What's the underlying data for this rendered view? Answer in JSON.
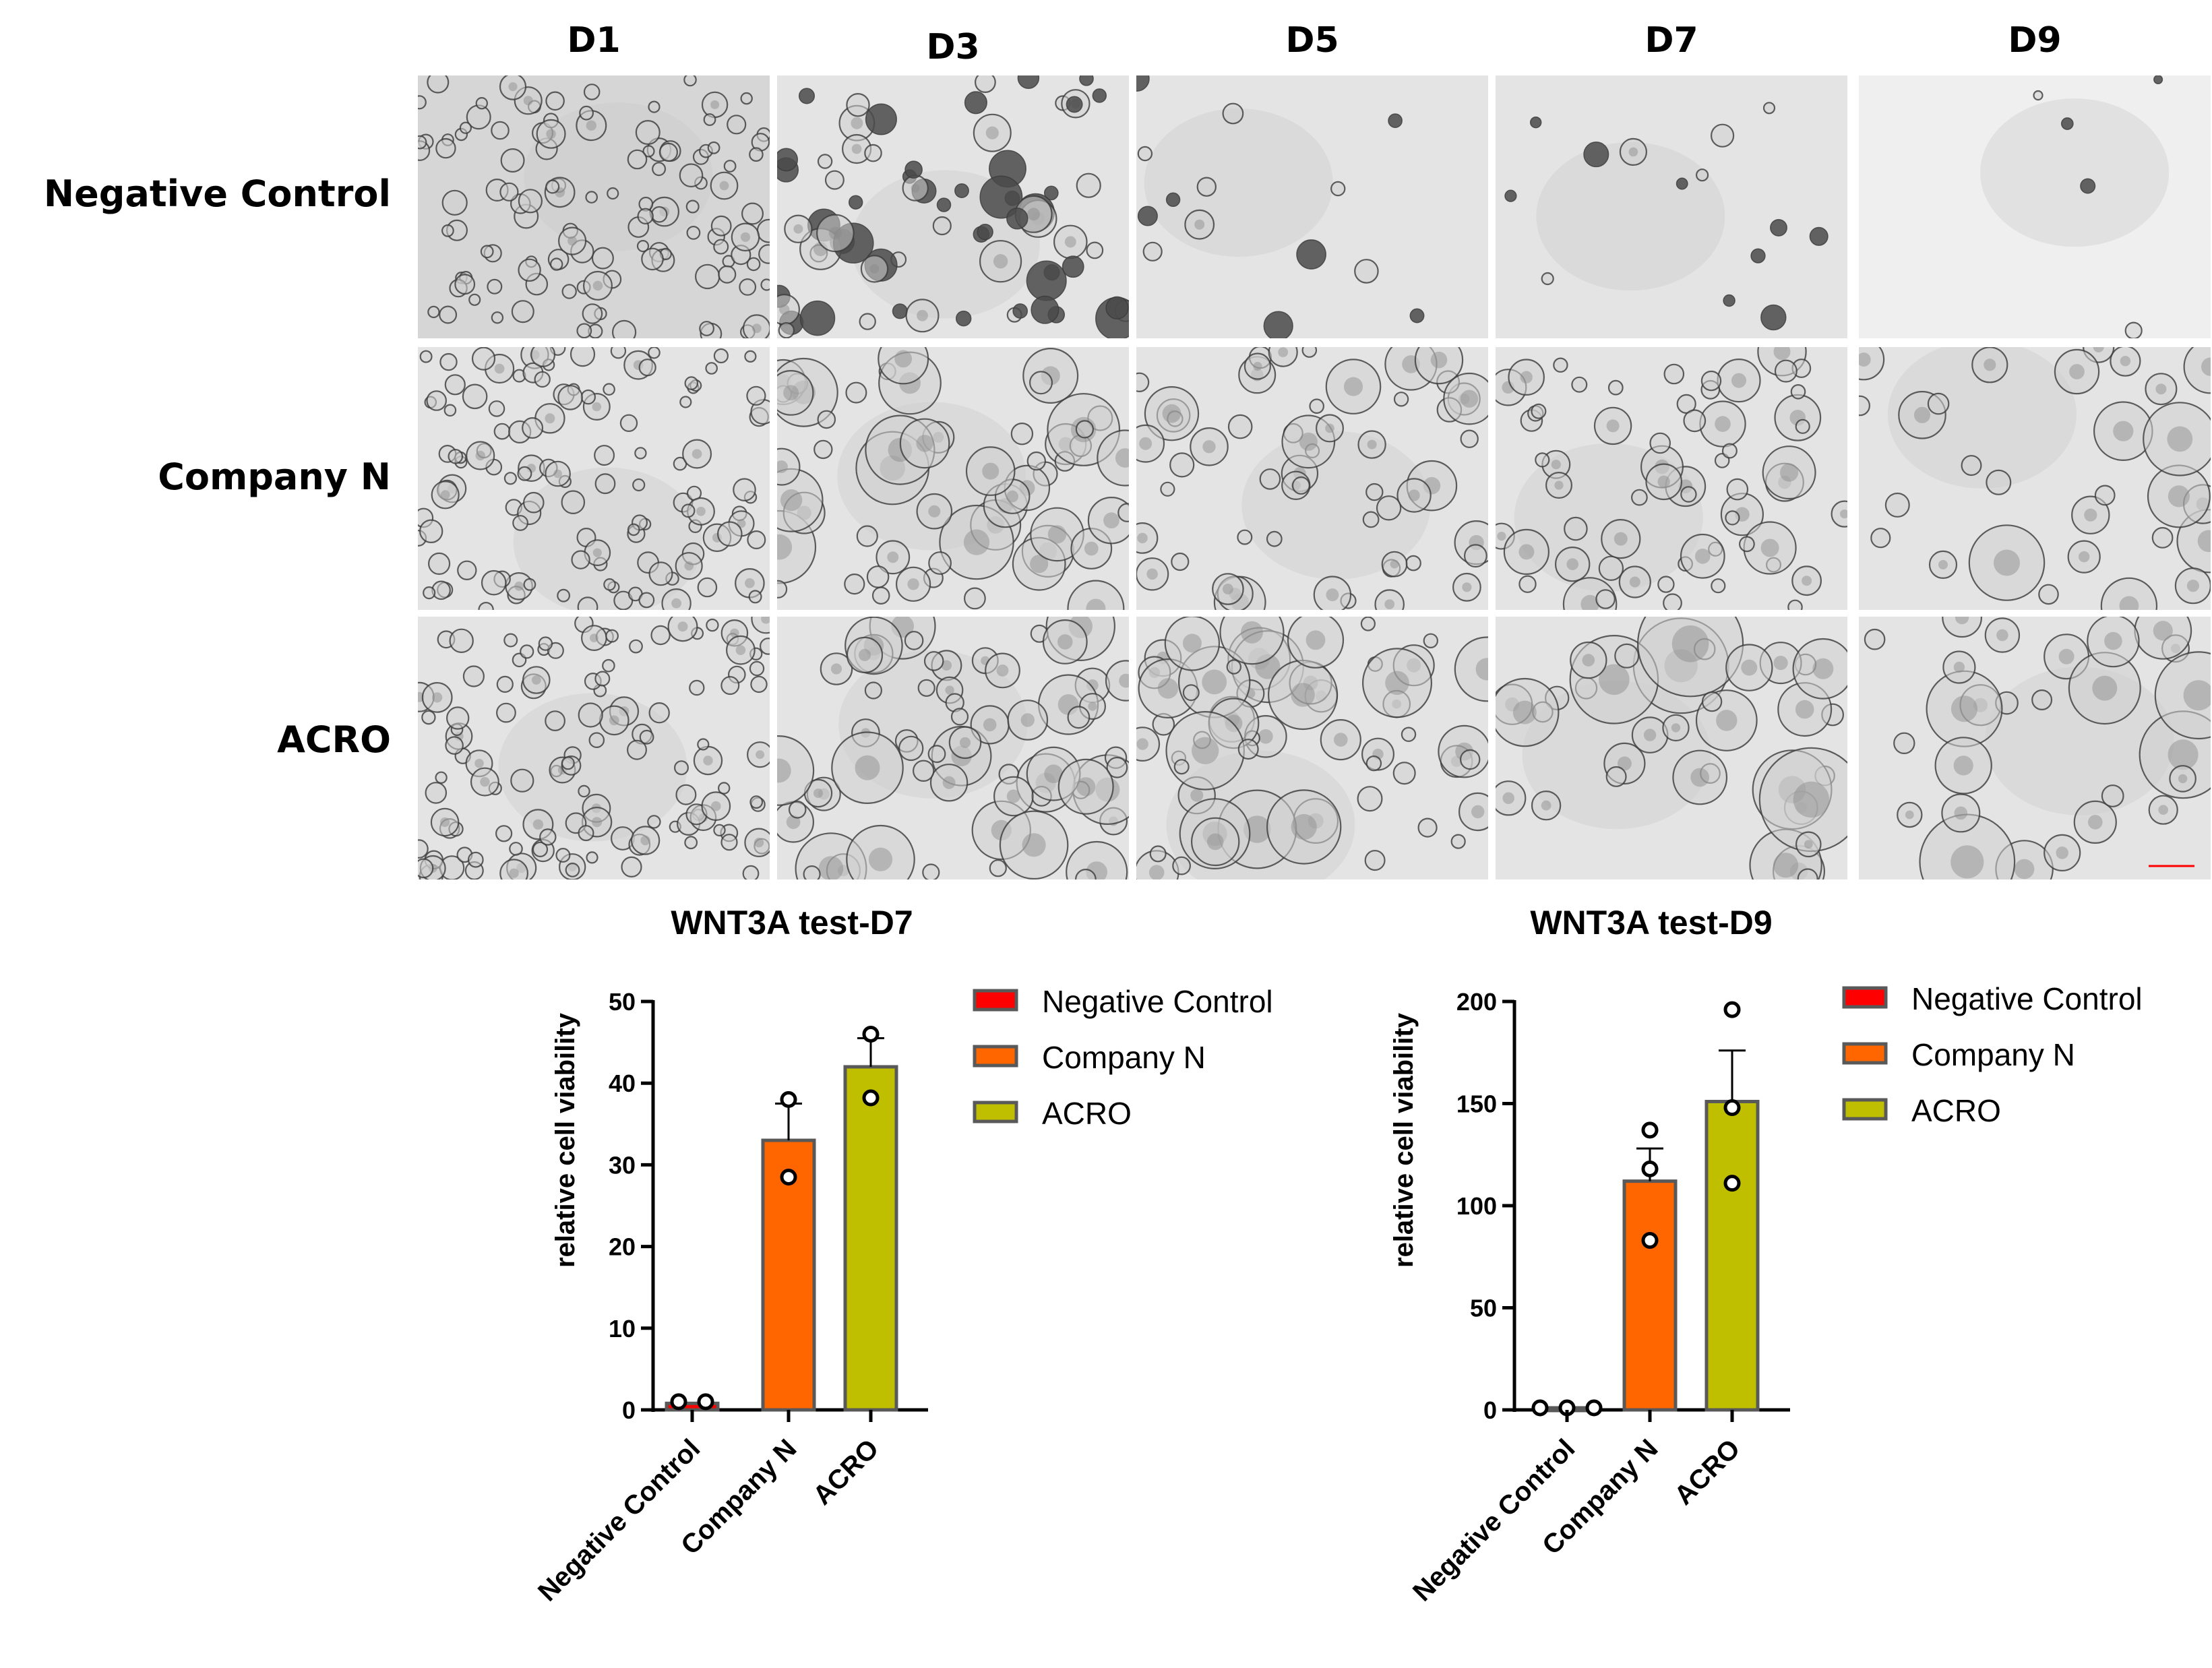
{
  "figure": {
    "columns": [
      "D1",
      "D3",
      "D5",
      "D7",
      "D9"
    ],
    "rows": [
      "Negative Control",
      "Company N",
      "ACRO"
    ]
  },
  "colors": {
    "Negative Control": "#ff0000",
    "Company N": "#ff6600",
    "ACRO": "#bfbf00",
    "bar_stroke": "#595959"
  },
  "chart_data": [
    {
      "type": "bar",
      "title": "WNT3A test-D7",
      "xlabel": "",
      "ylabel": "relative cell viability",
      "ylim": [
        0,
        50
      ],
      "yticks": [
        0,
        10,
        20,
        30,
        40,
        50
      ],
      "categories": [
        "Negative Control",
        "Company N",
        "ACRO"
      ],
      "values": [
        0.8,
        33,
        42
      ],
      "errors": [
        0.2,
        4.5,
        3.5
      ],
      "points": [
        [
          1,
          1
        ],
        [
          38,
          28.5
        ],
        [
          46,
          38.2
        ]
      ],
      "legend": {
        "position": "right",
        "entries": [
          "Negative Control",
          "Company N",
          "ACRO"
        ]
      },
      "grid": false
    },
    {
      "type": "bar",
      "title": "WNT3A test-D9",
      "xlabel": "",
      "ylabel": "relative cell viability",
      "ylim": [
        0,
        200
      ],
      "yticks": [
        0,
        50,
        100,
        150,
        200
      ],
      "categories": [
        "Negative Control",
        "Company N",
        "ACRO"
      ],
      "values": [
        1,
        112,
        151
      ],
      "errors": [
        0.5,
        16,
        25
      ],
      "points": [
        [
          1,
          1,
          1
        ],
        [
          137,
          118,
          83
        ],
        [
          196,
          148,
          111
        ]
      ],
      "legend": {
        "position": "right",
        "entries": [
          "Negative Control",
          "Company N",
          "ACRO"
        ]
      },
      "grid": false
    }
  ]
}
